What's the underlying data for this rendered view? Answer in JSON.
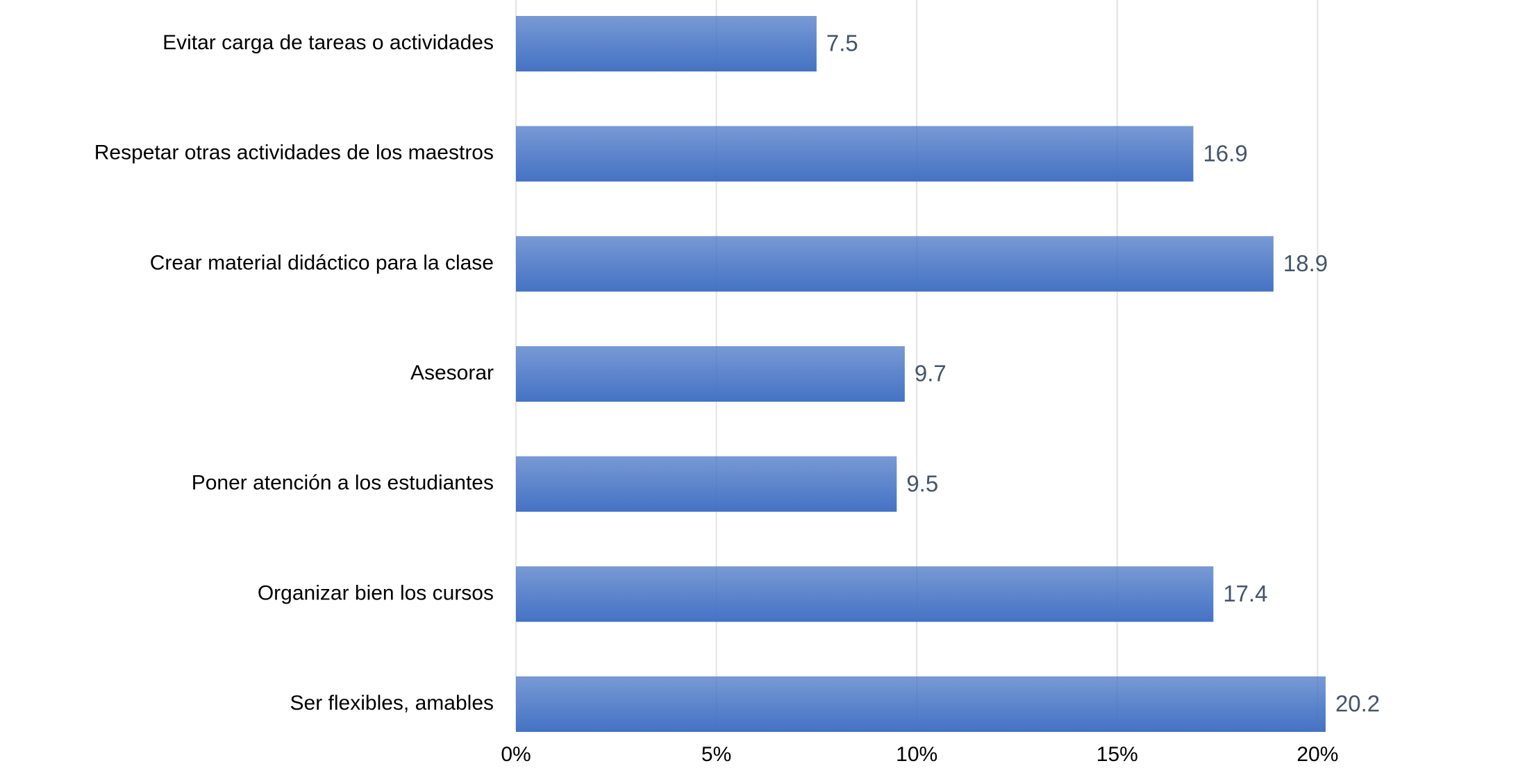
{
  "chart_data": {
    "type": "bar",
    "orientation": "horizontal",
    "categories": [
      "Evitar carga de tareas o actividades",
      "Respetar otras actividades de los maestros",
      "Crear material didáctico para la clase",
      "Asesorar",
      "Poner atención a los estudiantes",
      "Organizar bien los cursos",
      "Ser flexibles, amables"
    ],
    "values": [
      7.5,
      16.9,
      18.9,
      9.7,
      9.5,
      17.4,
      20.2
    ],
    "color": "#4472c4",
    "xlim": [
      0,
      25
    ],
    "xticks": [
      {
        "value": 0,
        "label": "0%"
      },
      {
        "value": 5,
        "label": "5%"
      },
      {
        "value": 10,
        "label": "10%"
      },
      {
        "value": 15,
        "label": "15%"
      },
      {
        "value": 20,
        "label": "20%"
      }
    ],
    "grid": true
  }
}
